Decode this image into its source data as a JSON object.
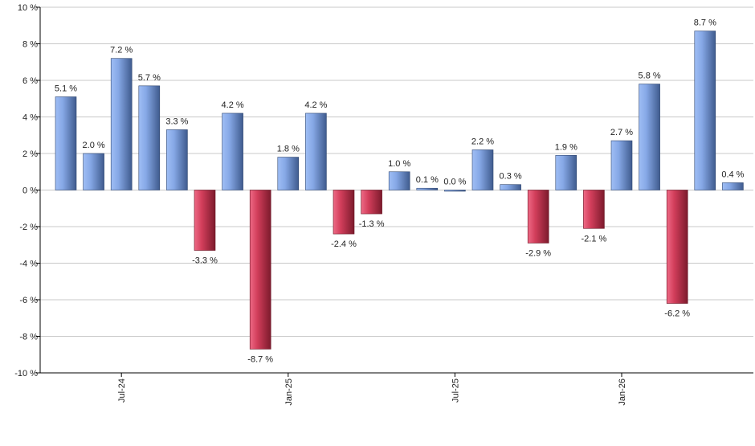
{
  "chart_data": {
    "type": "bar",
    "title": "",
    "xlabel": "",
    "ylabel": "",
    "ylim": [
      -10,
      10
    ],
    "y_ticks": [
      -10,
      -8,
      -6,
      -4,
      -2,
      0,
      2,
      4,
      6,
      8,
      10
    ],
    "y_tick_suffix": " %",
    "grid": true,
    "x_tick_labels": [
      {
        "label": "Jul-24",
        "index": 2
      },
      {
        "label": "Jan-25",
        "index": 8
      },
      {
        "label": "Jul-25",
        "index": 14
      },
      {
        "label": "Jan-26",
        "index": 20
      }
    ],
    "values": [
      5.1,
      2.0,
      7.2,
      5.7,
      3.3,
      -3.3,
      4.2,
      -8.7,
      1.8,
      4.2,
      -2.4,
      -1.3,
      1.0,
      0.1,
      0.0,
      2.2,
      0.3,
      -2.9,
      1.9,
      -2.1,
      2.7,
      5.8,
      -6.2,
      8.7,
      0.4
    ],
    "data_labels": [
      "5.1 %",
      "2.0 %",
      "7.2 %",
      "5.7 %",
      "3.3 %",
      "-3.3 %",
      "4.2 %",
      "-8.7 %",
      "1.8 %",
      "4.2 %",
      "-2.4 %",
      "-1.3 %",
      "1.0 %",
      "0.1 %",
      "0.0 %",
      "2.2 %",
      "0.3 %",
      "-2.9 %",
      "1.9 %",
      "-2.1 %",
      "2.7 %",
      "5.8 %",
      "-6.2 %",
      "8.7 %",
      "0.4 %"
    ],
    "colors": {
      "positive": "#7f9fde",
      "negative": "#c8334f",
      "grid": "#c8c8c8",
      "axis": "#000000"
    }
  }
}
